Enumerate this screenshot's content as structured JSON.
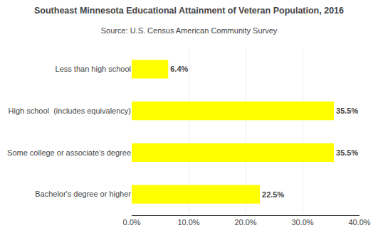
{
  "chart_data": {
    "type": "bar",
    "orientation": "horizontal",
    "title": "Southeast Minnesota Educational Attainment of Veteran Population, 2016",
    "subtitle": "Source: U.S. Census American Community Survey",
    "categories": [
      "Less than high school",
      "High school  (includes equivalency)",
      "Some college or associate's degree",
      "Bachelor's degree or higher"
    ],
    "values": [
      6.4,
      35.5,
      35.5,
      22.5
    ],
    "value_labels": [
      "6.4%",
      "35.5%",
      "35.5%",
      "22.5%"
    ],
    "data_labels": true,
    "color": "#ffff00",
    "xlim": [
      0,
      40
    ],
    "xticks": [
      {
        "value": 0,
        "label": "0.0%"
      },
      {
        "value": 10,
        "label": "10.0%"
      },
      {
        "value": 20,
        "label": "20.0%"
      },
      {
        "value": 30,
        "label": "30.0%"
      },
      {
        "value": 40,
        "label": "40.0%"
      }
    ],
    "grid": true
  }
}
